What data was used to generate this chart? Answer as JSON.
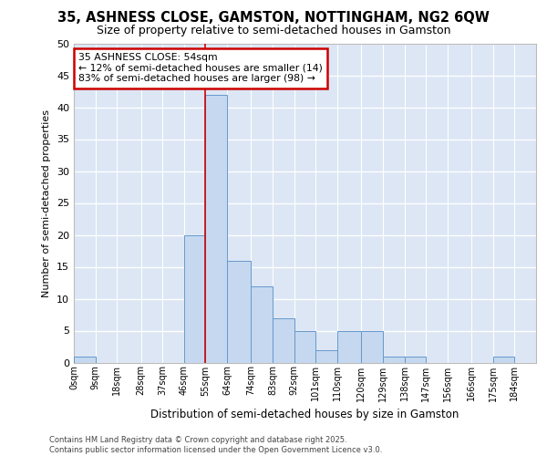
{
  "title1": "35, ASHNESS CLOSE, GAMSTON, NOTTINGHAM, NG2 6QW",
  "title2": "Size of property relative to semi-detached houses in Gamston",
  "xlabel": "Distribution of semi-detached houses by size in Gamston",
  "ylabel": "Number of semi-detached properties",
  "bin_labels": [
    "0sqm",
    "9sqm",
    "18sqm",
    "28sqm",
    "37sqm",
    "46sqm",
    "55sqm",
    "64sqm",
    "74sqm",
    "83sqm",
    "92sqm",
    "101sqm",
    "110sqm",
    "120sqm",
    "129sqm",
    "138sqm",
    "147sqm",
    "156sqm",
    "166sqm",
    "175sqm",
    "184sqm"
  ],
  "bin_edges": [
    0,
    9,
    18,
    28,
    37,
    46,
    55,
    64,
    74,
    83,
    92,
    101,
    110,
    120,
    129,
    138,
    147,
    156,
    166,
    175,
    184,
    193
  ],
  "counts": [
    1,
    0,
    0,
    0,
    0,
    20,
    42,
    16,
    12,
    7,
    5,
    2,
    5,
    5,
    1,
    1,
    0,
    0,
    0,
    1,
    0
  ],
  "bar_color": "#c5d8ef",
  "bar_edge_color": "#6699cc",
  "vline_x": 55,
  "annotation_text": "35 ASHNESS CLOSE: 54sqm\n← 12% of semi-detached houses are smaller (14)\n83% of semi-detached houses are larger (98) →",
  "annotation_box_color": "#ffffff",
  "annotation_box_edge": "#cc0000",
  "vline_color": "#cc0000",
  "bg_color": "#dce6f5",
  "grid_color": "#ffffff",
  "footer_text": "Contains HM Land Registry data © Crown copyright and database right 2025.\nContains public sector information licensed under the Open Government Licence v3.0.",
  "ylim": [
    0,
    50
  ],
  "yticks": [
    0,
    5,
    10,
    15,
    20,
    25,
    30,
    35,
    40,
    45,
    50
  ],
  "title1_fontsize": 10.5,
  "title2_fontsize": 9
}
